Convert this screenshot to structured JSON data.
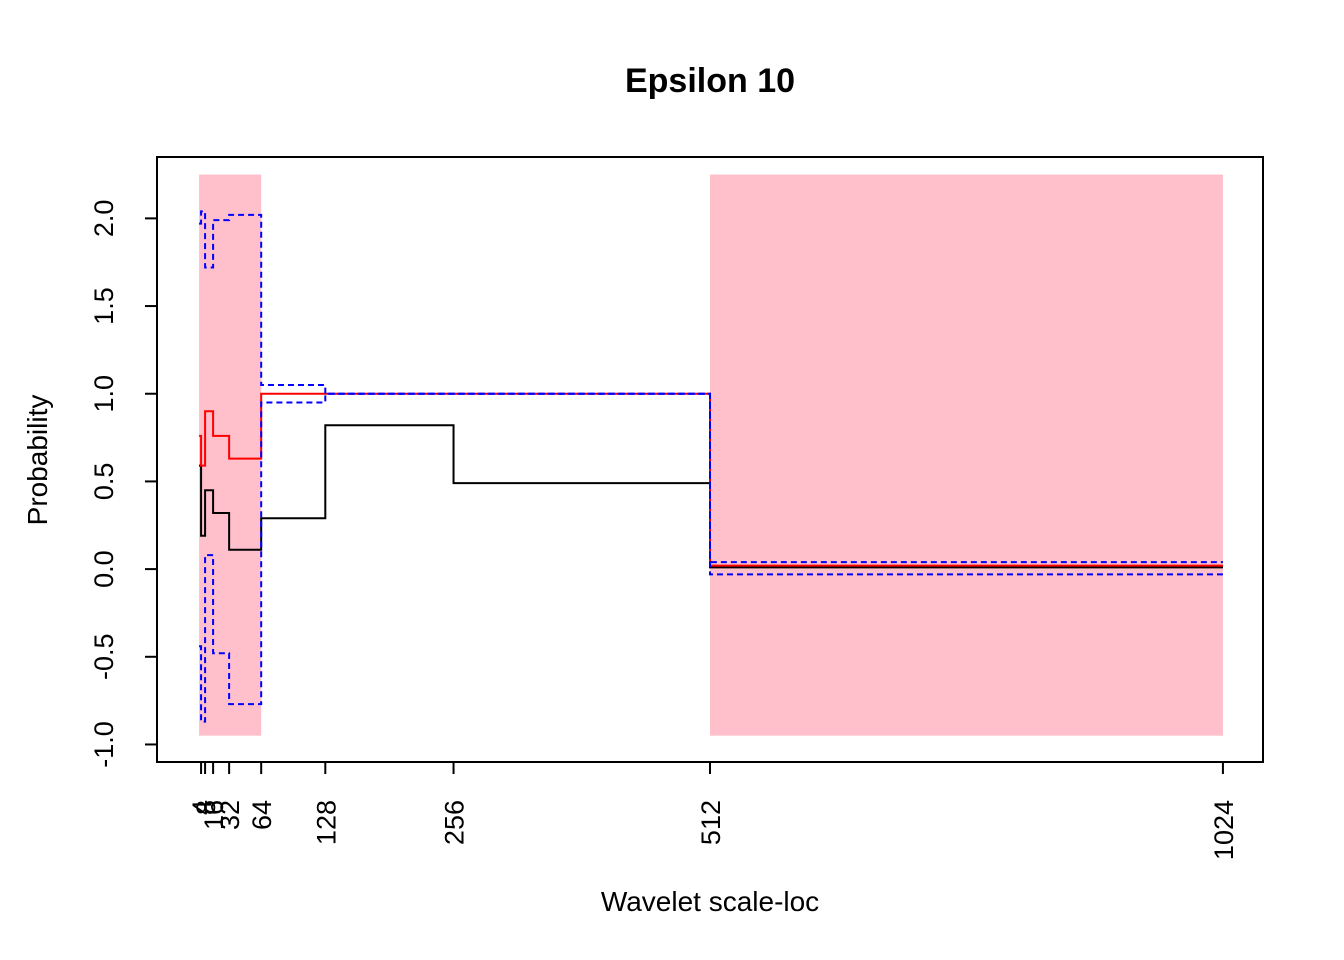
{
  "chart_data": {
    "type": "line",
    "title": "Epsilon 10",
    "xlabel": "Wavelet scale-loc",
    "ylabel": "Probability",
    "xlim": [
      -40,
      1064
    ],
    "ylim": [
      -1.1,
      2.35
    ],
    "x_ticks": [
      4,
      8,
      16,
      32,
      64,
      128,
      256,
      512,
      1024
    ],
    "x_tick_labels": [
      "4",
      "8",
      "16",
      "32",
      "64",
      "128",
      "256",
      "512",
      "1024"
    ],
    "y_ticks": [
      -1.0,
      -0.5,
      0.0,
      0.5,
      1.0,
      1.5,
      2.0
    ],
    "y_tick_labels": [
      "-1.0",
      "-0.5",
      "0.0",
      "0.5",
      "1.0",
      "1.5",
      "2.0"
    ],
    "shaded_regions": [
      {
        "x0": 2,
        "x1": 64,
        "y0": -0.95,
        "y1": 2.25,
        "color": "#FFC0CB"
      },
      {
        "x0": 512,
        "x1": 1024,
        "y0": -0.95,
        "y1": 2.25,
        "color": "#FFC0CB"
      }
    ],
    "series": [
      {
        "color": "#000000",
        "dash": "solid",
        "steps": [
          {
            "x0": 2,
            "x1": 4,
            "y": 0.59
          },
          {
            "x0": 4,
            "x1": 8,
            "y": 0.19
          },
          {
            "x0": 8,
            "x1": 16,
            "y": 0.45
          },
          {
            "x0": 16,
            "x1": 32,
            "y": 0.32
          },
          {
            "x0": 32,
            "x1": 64,
            "y": 0.11
          },
          {
            "x0": 64,
            "x1": 128,
            "y": 0.29
          },
          {
            "x0": 128,
            "x1": 256,
            "y": 0.82
          },
          {
            "x0": 256,
            "x1": 512,
            "y": 0.49
          },
          {
            "x0": 512,
            "x1": 1024,
            "y": 0.01
          }
        ]
      },
      {
        "color": "#FF0000",
        "dash": "solid",
        "steps": [
          {
            "x0": 2,
            "x1": 4,
            "y": 0.76
          },
          {
            "x0": 4,
            "x1": 8,
            "y": 0.59
          },
          {
            "x0": 8,
            "x1": 16,
            "y": 0.9
          },
          {
            "x0": 16,
            "x1": 32,
            "y": 0.76
          },
          {
            "x0": 32,
            "x1": 64,
            "y": 0.63
          },
          {
            "x0": 64,
            "x1": 128,
            "y": 1.0
          },
          {
            "x0": 128,
            "x1": 256,
            "y": 1.0
          },
          {
            "x0": 256,
            "x1": 512,
            "y": 1.0
          },
          {
            "x0": 512,
            "x1": 1024,
            "y": 0.02
          }
        ]
      },
      {
        "color": "#0000FF",
        "dash": "dashed",
        "steps": [
          {
            "x0": 2,
            "x1": 4,
            "y": 1.97
          },
          {
            "x0": 4,
            "x1": 8,
            "y": 2.04
          },
          {
            "x0": 8,
            "x1": 16,
            "y": 1.72
          },
          {
            "x0": 16,
            "x1": 32,
            "y": 1.99
          },
          {
            "x0": 32,
            "x1": 64,
            "y": 2.02
          },
          {
            "x0": 64,
            "x1": 128,
            "y": 1.05
          },
          {
            "x0": 128,
            "x1": 256,
            "y": 1.0
          },
          {
            "x0": 256,
            "x1": 512,
            "y": 1.0
          },
          {
            "x0": 512,
            "x1": 1024,
            "y": 0.04
          }
        ]
      },
      {
        "color": "#0000FF",
        "dash": "dashed",
        "steps": [
          {
            "x0": 2,
            "x1": 4,
            "y": -0.44
          },
          {
            "x0": 4,
            "x1": 8,
            "y": -0.87
          },
          {
            "x0": 8,
            "x1": 16,
            "y": 0.08
          },
          {
            "x0": 16,
            "x1": 32,
            "y": -0.48
          },
          {
            "x0": 32,
            "x1": 64,
            "y": -0.77
          },
          {
            "x0": 64,
            "x1": 128,
            "y": 0.95
          },
          {
            "x0": 128,
            "x1": 256,
            "y": 1.0
          },
          {
            "x0": 256,
            "x1": 512,
            "y": 1.0
          },
          {
            "x0": 512,
            "x1": 1024,
            "y": -0.03
          }
        ]
      }
    ]
  }
}
